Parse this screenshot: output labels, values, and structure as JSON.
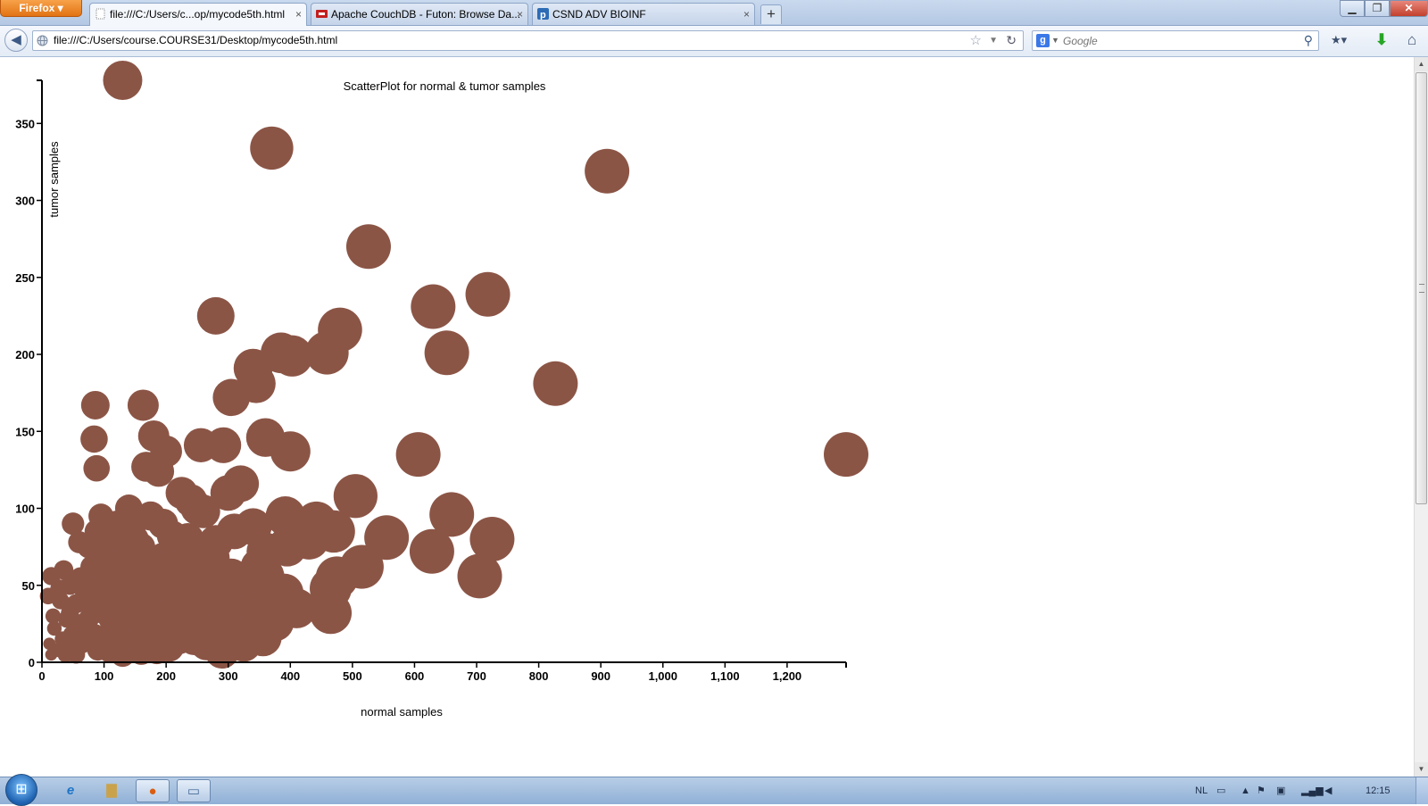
{
  "browser": {
    "menu_button": "Firefox",
    "tabs": [
      {
        "label": "file:///C:/Users/c...op/mycode5th.html",
        "close": "×"
      },
      {
        "label": "Apache CouchDB - Futon: Browse Da...",
        "close": "×"
      },
      {
        "label": "CSND ADV BIOINF",
        "close": "×"
      }
    ],
    "new_tab": "+",
    "url": "file:///C:/Users/course.COURSE31/Desktop/mycode5th.html",
    "search": {
      "engine_icon": "g",
      "placeholder": "Google"
    },
    "icons": {
      "back": "back-arrow-icon",
      "reload": "reload-icon",
      "bookmark_star": "star-icon",
      "search_go": "magnifier-icon",
      "downloads": "download-arrow-icon",
      "home": "home-icon"
    }
  },
  "chart_data": {
    "type": "scatter",
    "title": "ScatterPlot for normal & tumor samples",
    "xlabel": "normal samples",
    "ylabel": "tumor samples",
    "xlim": [
      0,
      1295
    ],
    "ylim": [
      0,
      378
    ],
    "x_ticks": [
      0,
      100,
      200,
      300,
      400,
      500,
      600,
      700,
      800,
      900,
      1000,
      1100,
      1200
    ],
    "x_tick_labels": [
      "0",
      "100",
      "200",
      "300",
      "400",
      "500",
      "600",
      "700",
      "800",
      "900",
      "1,000",
      "1,100",
      "1,200"
    ],
    "y_ticks": [
      0,
      50,
      100,
      150,
      200,
      250,
      300,
      350
    ],
    "y_tick_labels": [
      "0",
      "50",
      "100",
      "150",
      "200",
      "250",
      "300",
      "350"
    ],
    "marker_color": "#8B5546",
    "grid": false,
    "legend": "none",
    "points": [
      [
        130,
        378
      ],
      [
        370,
        334
      ],
      [
        910,
        319
      ],
      [
        526,
        270
      ],
      [
        280,
        225
      ],
      [
        630,
        231
      ],
      [
        718,
        239
      ],
      [
        480,
        216
      ],
      [
        385,
        201
      ],
      [
        403,
        199
      ],
      [
        459,
        201
      ],
      [
        652,
        201
      ],
      [
        827,
        181
      ],
      [
        340,
        191
      ],
      [
        345,
        181
      ],
      [
        305,
        172
      ],
      [
        86,
        167
      ],
      [
        163,
        167
      ],
      [
        84,
        145
      ],
      [
        180,
        147
      ],
      [
        200,
        137
      ],
      [
        256,
        141
      ],
      [
        292,
        141
      ],
      [
        360,
        146
      ],
      [
        400,
        137
      ],
      [
        606,
        135
      ],
      [
        1295,
        135
      ],
      [
        88,
        126
      ],
      [
        168,
        127
      ],
      [
        188,
        124
      ],
      [
        225,
        110
      ],
      [
        250,
        100
      ],
      [
        300,
        110
      ],
      [
        320,
        116
      ],
      [
        505,
        108
      ],
      [
        240,
        105
      ],
      [
        260,
        98
      ],
      [
        392,
        95
      ],
      [
        442,
        91
      ],
      [
        470,
        85
      ],
      [
        555,
        81
      ],
      [
        660,
        96
      ],
      [
        725,
        80
      ],
      [
        628,
        72
      ],
      [
        395,
        75
      ],
      [
        430,
        80
      ],
      [
        50,
        90
      ],
      [
        88,
        85
      ],
      [
        110,
        80
      ],
      [
        145,
        88
      ],
      [
        135,
        72
      ],
      [
        60,
        78
      ],
      [
        75,
        75
      ],
      [
        100,
        70
      ],
      [
        160,
        75
      ],
      [
        195,
        68
      ],
      [
        215,
        72
      ],
      [
        235,
        80
      ],
      [
        280,
        78
      ],
      [
        310,
        85
      ],
      [
        340,
        88
      ],
      [
        360,
        72
      ],
      [
        350,
        62
      ],
      [
        360,
        56
      ],
      [
        305,
        56
      ],
      [
        270,
        60
      ],
      [
        245,
        58
      ],
      [
        210,
        55
      ],
      [
        180,
        60
      ],
      [
        150,
        62
      ],
      [
        120,
        55
      ],
      [
        90,
        50
      ],
      [
        70,
        45
      ],
      [
        45,
        50
      ],
      [
        15,
        56
      ],
      [
        10,
        43
      ],
      [
        30,
        40
      ],
      [
        55,
        38
      ],
      [
        80,
        35
      ],
      [
        100,
        32
      ],
      [
        125,
        38
      ],
      [
        140,
        30
      ],
      [
        160,
        35
      ],
      [
        185,
        42
      ],
      [
        205,
        38
      ],
      [
        225,
        32
      ],
      [
        250,
        28
      ],
      [
        270,
        36
      ],
      [
        295,
        30
      ],
      [
        320,
        36
      ],
      [
        345,
        40
      ],
      [
        370,
        46
      ],
      [
        390,
        45
      ],
      [
        410,
        35
      ],
      [
        330,
        30
      ],
      [
        290,
        22
      ],
      [
        265,
        18
      ],
      [
        240,
        22
      ],
      [
        215,
        20
      ],
      [
        190,
        18
      ],
      [
        165,
        22
      ],
      [
        145,
        17
      ],
      [
        120,
        20
      ],
      [
        100,
        15
      ],
      [
        85,
        18
      ],
      [
        65,
        12
      ],
      [
        45,
        10
      ],
      [
        25,
        8
      ],
      [
        15,
        5
      ],
      [
        60,
        25
      ],
      [
        95,
        42
      ],
      [
        115,
        45
      ],
      [
        138,
        50
      ],
      [
        170,
        50
      ],
      [
        195,
        30
      ],
      [
        230,
        45
      ],
      [
        258,
        40
      ],
      [
        275,
        44
      ],
      [
        312,
        42
      ],
      [
        342,
        22
      ],
      [
        375,
        26
      ],
      [
        475,
        55
      ],
      [
        465,
        48
      ],
      [
        515,
        62
      ],
      [
        705,
        56
      ],
      [
        465,
        32
      ],
      [
        20,
        22
      ],
      [
        40,
        28
      ],
      [
        70,
        20
      ],
      [
        110,
        28
      ],
      [
        155,
        28
      ],
      [
        175,
        13
      ],
      [
        205,
        10
      ],
      [
        130,
        5
      ],
      [
        110,
        7
      ],
      [
        55,
        5
      ],
      [
        90,
        8
      ],
      [
        75,
        28
      ],
      [
        48,
        18
      ],
      [
        33,
        15
      ],
      [
        122,
        65
      ],
      [
        150,
        48
      ],
      [
        170,
        30
      ],
      [
        225,
        60
      ],
      [
        258,
        52
      ],
      [
        285,
        50
      ],
      [
        80,
        62
      ],
      [
        108,
        60
      ],
      [
        130,
        45
      ],
      [
        35,
        60
      ],
      [
        62,
        55
      ],
      [
        210,
        82
      ],
      [
        195,
        90
      ],
      [
        150,
        80
      ],
      [
        175,
        95
      ],
      [
        140,
        100
      ],
      [
        120,
        90
      ],
      [
        95,
        95
      ],
      [
        255,
        65
      ],
      [
        275,
        68
      ],
      [
        235,
        68
      ],
      [
        220,
        40
      ],
      [
        160,
        58
      ],
      [
        205,
        62
      ],
      [
        180,
        48
      ],
      [
        315,
        48
      ],
      [
        295,
        38
      ],
      [
        265,
        28
      ],
      [
        245,
        15
      ],
      [
        45,
        32
      ],
      [
        28,
        48
      ],
      [
        18,
        30
      ],
      [
        12,
        12
      ],
      [
        38,
        5
      ],
      [
        105,
        12
      ],
      [
        135,
        12
      ],
      [
        160,
        7
      ],
      [
        185,
        8
      ],
      [
        220,
        15
      ],
      [
        265,
        12
      ],
      [
        290,
        7
      ],
      [
        325,
        12
      ],
      [
        356,
        16
      ],
      [
        295,
        28
      ]
    ]
  }
}
